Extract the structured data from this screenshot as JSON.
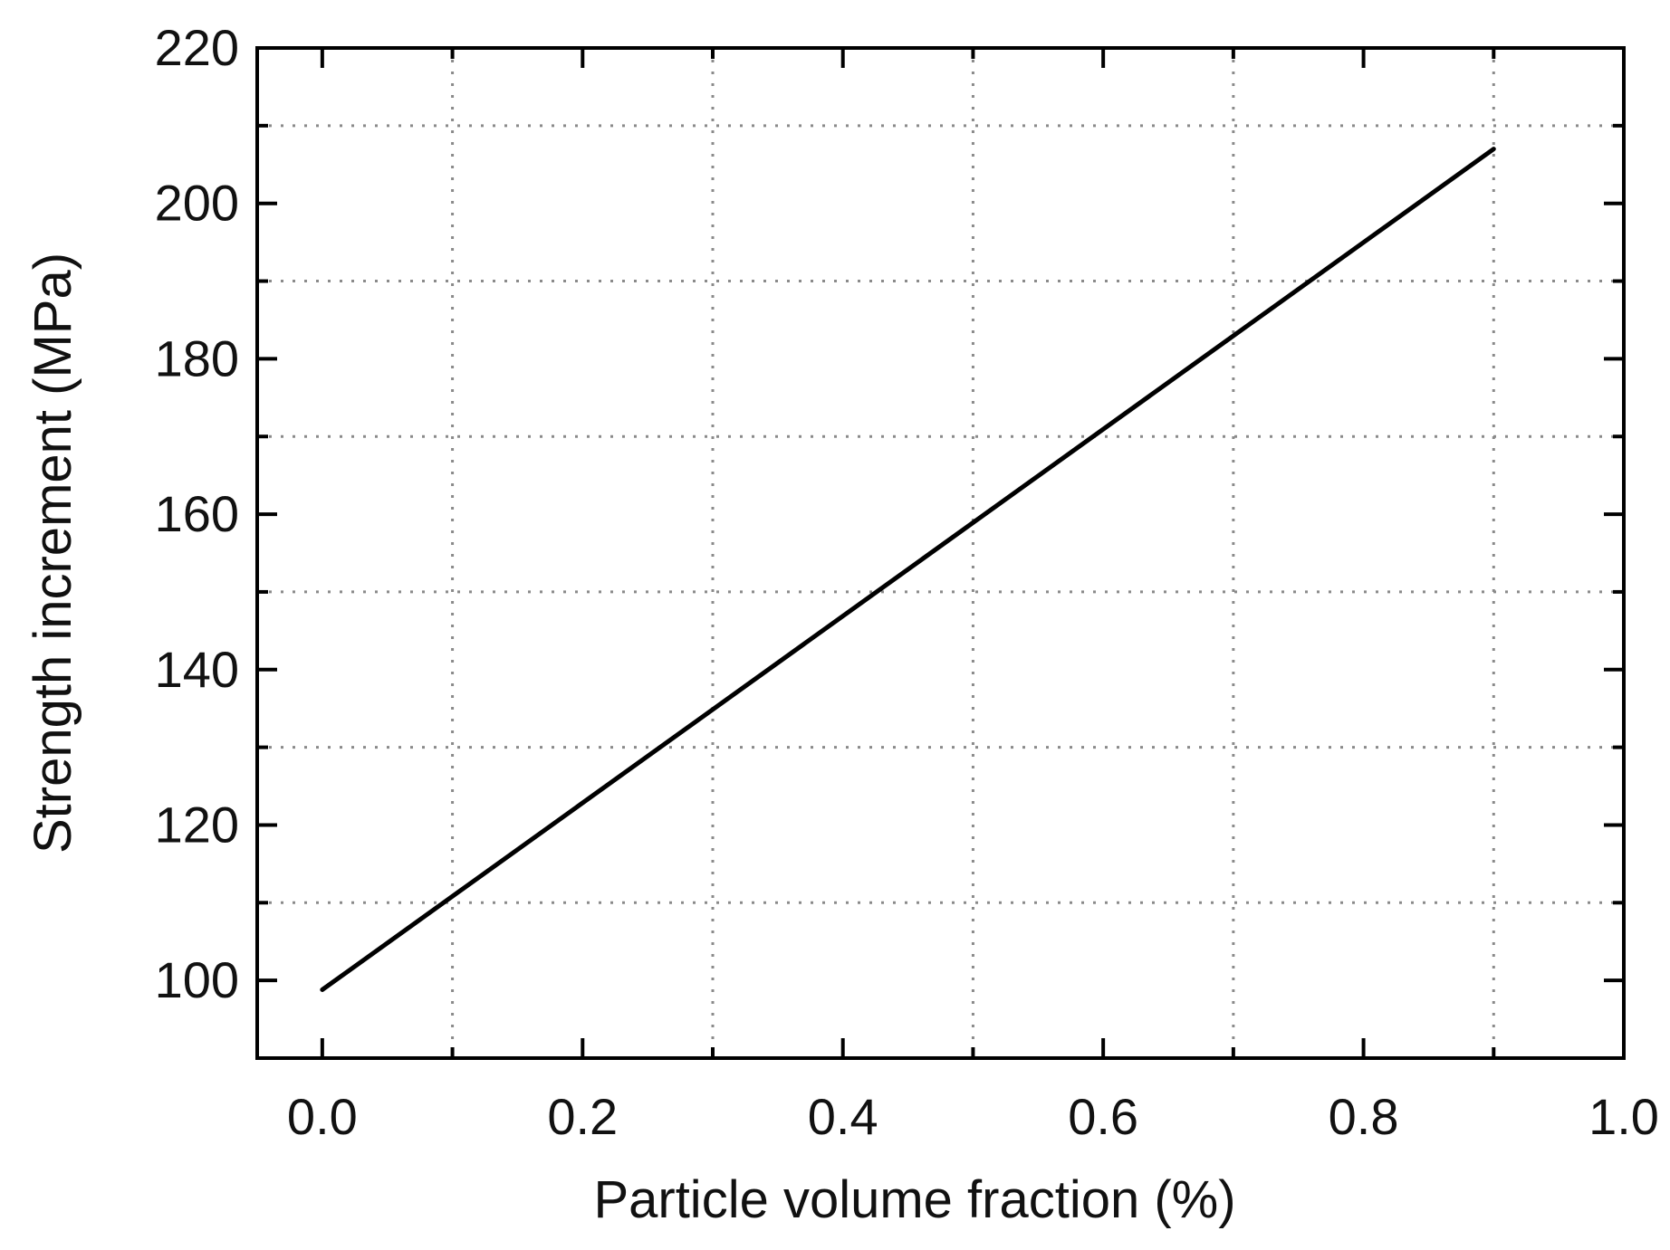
{
  "chart_data": {
    "type": "line",
    "title": "",
    "xlabel": "Particle volume fraction (%)",
    "ylabel": "Strength increment (MPa)",
    "xlim": [
      -0.05,
      1.0
    ],
    "ylim": [
      90,
      220
    ],
    "x_ticks": [
      0.0,
      0.2,
      0.4,
      0.6,
      0.8,
      1.0
    ],
    "x_tick_labels": [
      "0.0",
      "0.2",
      "0.4",
      "0.6",
      "0.8",
      "1.0"
    ],
    "y_ticks": [
      100,
      120,
      140,
      160,
      180,
      200,
      220
    ],
    "y_tick_labels": [
      "100",
      "120",
      "140",
      "160",
      "180",
      "200",
      "220"
    ],
    "x_minor_grid": [
      0.1,
      0.3,
      0.5,
      0.7,
      0.9
    ],
    "y_minor_grid": [
      110,
      130,
      150,
      170,
      190,
      210
    ],
    "grid": true,
    "legend": "none",
    "series": [
      {
        "x": [
          0.0,
          0.9
        ],
        "y": [
          98.8,
          207.0
        ],
        "color": "#000000"
      }
    ]
  }
}
